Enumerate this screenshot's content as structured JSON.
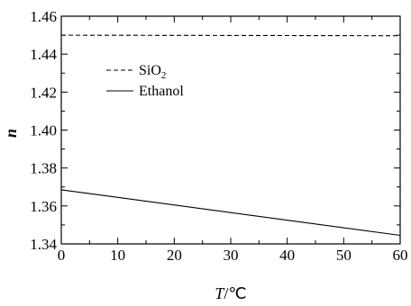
{
  "chart_data": {
    "type": "line",
    "xlabel_var": "T",
    "xlabel_unit": "/℃",
    "ylabel": "n",
    "xlim": [
      0,
      60
    ],
    "ylim": [
      1.34,
      1.46
    ],
    "x_ticks": [
      0,
      10,
      20,
      30,
      40,
      50,
      60
    ],
    "x_tick_labels": [
      "0",
      "10",
      "20",
      "30",
      "40",
      "50",
      "60"
    ],
    "y_ticks": [
      1.34,
      1.36,
      1.38,
      1.4,
      1.42,
      1.44,
      1.46
    ],
    "y_tick_labels": [
      "1.34",
      "1.36",
      "1.38",
      "1.40",
      "1.42",
      "1.44",
      "1.46"
    ],
    "grid": false,
    "legend_position": "upper-left",
    "series": [
      {
        "name_main": "SiO",
        "name_sub": "2",
        "style": "dashed",
        "x": [
          0,
          60
        ],
        "y": [
          1.45,
          1.4497
        ]
      },
      {
        "name_main": "Ethanol",
        "name_sub": "",
        "style": "solid",
        "x": [
          0,
          60
        ],
        "y": [
          1.3685,
          1.3445
        ]
      }
    ]
  }
}
